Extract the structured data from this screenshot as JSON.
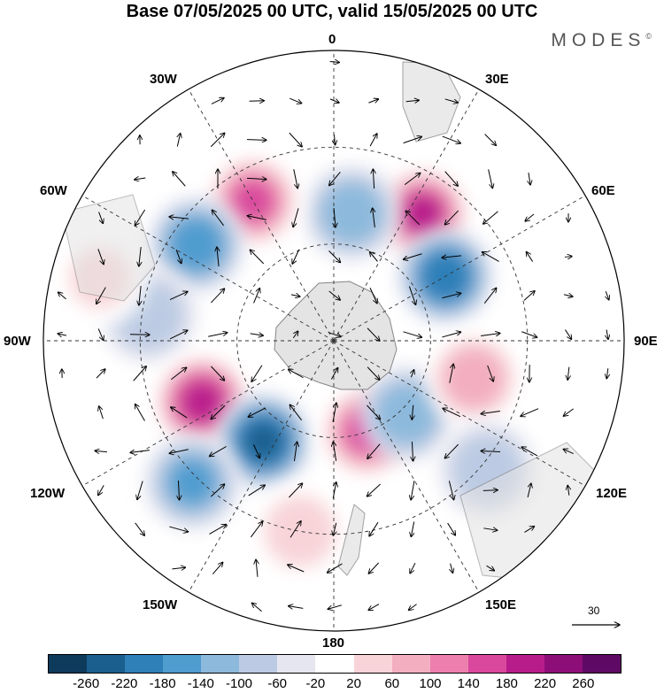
{
  "title": "Base 07/05/2025 00 UTC, valid 15/05/2025 00 UTC",
  "brand": {
    "text": "MODES",
    "mark": "©"
  },
  "lon_labels": {
    "top": "0",
    "bottom": "180",
    "left": "90W",
    "right": "90E",
    "upper_left_1": "30W",
    "upper_left_2": "60W",
    "upper_right_1": "30E",
    "upper_right_2": "60E",
    "lower_left_1": "150W",
    "lower_left_2": "120W",
    "lower_right_1": "150E",
    "lower_right_2": "120E"
  },
  "reference_vector": {
    "label": "30"
  },
  "colorbar": {
    "colors": [
      "#0e3a5c",
      "#1a5f8e",
      "#2f7fb8",
      "#4f9ccf",
      "#8cb9dc",
      "#bccbe3",
      "#e6e6f0",
      "#ffffff",
      "#f8d4d8",
      "#f3aec0",
      "#ec7fae",
      "#d9489d",
      "#b81c8b",
      "#8e0e78",
      "#5e0a64"
    ],
    "ticks": [
      "-260",
      "-220",
      "-180",
      "-140",
      "-100",
      "-60",
      "-20",
      "20",
      "60",
      "100",
      "140",
      "180",
      "220",
      "260"
    ]
  },
  "anomaly_cells": [
    {
      "lon": 35,
      "colat": 48,
      "value": 250
    },
    {
      "lon": 60,
      "colat": 40,
      "value": -230
    },
    {
      "lon": 8,
      "colat": 40,
      "value": -140
    },
    {
      "lon": -30,
      "colat": 50,
      "value": 200
    },
    {
      "lon": -55,
      "colat": 52,
      "value": -180
    },
    {
      "lon": -82,
      "colat": 58,
      "value": -100
    },
    {
      "lon": -115,
      "colat": 45,
      "value": 260
    },
    {
      "lon": -145,
      "colat": 38,
      "value": -260
    },
    {
      "lon": -135,
      "colat": 62,
      "value": -160
    },
    {
      "lon": 160,
      "colat": 30,
      "value": 200
    },
    {
      "lon": 135,
      "colat": 32,
      "value": -140
    },
    {
      "lon": 105,
      "colat": 45,
      "value": 140
    },
    {
      "lon": 130,
      "colat": 62,
      "value": -100
    },
    {
      "lon": -170,
      "colat": 60,
      "value": 100
    },
    {
      "lon": -75,
      "colat": 75,
      "value": 60
    }
  ]
}
